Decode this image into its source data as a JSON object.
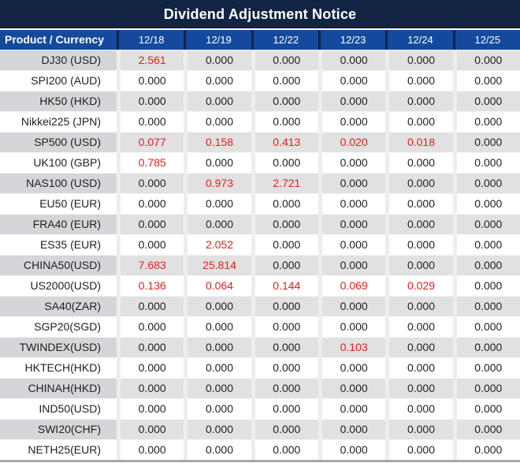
{
  "title": "Dividend Adjustment Notice",
  "colors": {
    "title_bar_navy": "#122444",
    "header_blue": "#15499e",
    "stripe_label_gray": "#d5d6d9",
    "stripe_cell_gray": "#e1e1e1",
    "gridline_gray": "#ededed",
    "highlight_red": "#e02222",
    "text_black": "#1f1f1f"
  },
  "table": {
    "header": [
      "Product / Currency",
      "12/18",
      "12/19",
      "12/22",
      "12/23",
      "12/24",
      "12/25"
    ],
    "rows": [
      {
        "label": "DJ30 (USD)",
        "values": [
          "2.561",
          "0.000",
          "0.000",
          "0.000",
          "0.000",
          "0.000"
        ]
      },
      {
        "label": "SPI200 (AUD)",
        "values": [
          "0.000",
          "0.000",
          "0.000",
          "0.000",
          "0.000",
          "0.000"
        ]
      },
      {
        "label": "HK50 (HKD)",
        "values": [
          "0.000",
          "0.000",
          "0.000",
          "0.000",
          "0.000",
          "0.000"
        ]
      },
      {
        "label": "Nikkei225 (JPN)",
        "values": [
          "0.000",
          "0.000",
          "0.000",
          "0.000",
          "0.000",
          "0.000"
        ]
      },
      {
        "label": "SP500 (USD)",
        "values": [
          "0.077",
          "0.158",
          "0.413",
          "0.020",
          "0.018",
          "0.000"
        ]
      },
      {
        "label": "UK100 (GBP)",
        "values": [
          "0.785",
          "0.000",
          "0.000",
          "0.000",
          "0.000",
          "0.000"
        ]
      },
      {
        "label": "NAS100 (USD)",
        "values": [
          "0.000",
          "0.973",
          "2.721",
          "0.000",
          "0.000",
          "0.000"
        ]
      },
      {
        "label": "EU50 (EUR)",
        "values": [
          "0.000",
          "0.000",
          "0.000",
          "0.000",
          "0.000",
          "0.000"
        ]
      },
      {
        "label": "FRA40 (EUR)",
        "values": [
          "0.000",
          "0.000",
          "0.000",
          "0.000",
          "0.000",
          "0.000"
        ]
      },
      {
        "label": "ES35 (EUR)",
        "values": [
          "0.000",
          "2.052",
          "0.000",
          "0.000",
          "0.000",
          "0.000"
        ]
      },
      {
        "label": "CHINA50(USD)",
        "values": [
          "7.683",
          "25.814",
          "0.000",
          "0.000",
          "0.000",
          "0.000"
        ]
      },
      {
        "label": "US2000(USD)",
        "values": [
          "0.136",
          "0.064",
          "0.144",
          "0.069",
          "0.029",
          "0.000"
        ]
      },
      {
        "label": "SA40(ZAR)",
        "values": [
          "0.000",
          "0.000",
          "0.000",
          "0.000",
          "0.000",
          "0.000"
        ]
      },
      {
        "label": "SGP20(SGD)",
        "values": [
          "0.000",
          "0.000",
          "0.000",
          "0.000",
          "0.000",
          "0.000"
        ]
      },
      {
        "label": "TWINDEX(USD)",
        "values": [
          "0.000",
          "0.000",
          "0.000",
          "0.103",
          "0.000",
          "0.000"
        ]
      },
      {
        "label": "HKTECH(HKD)",
        "values": [
          "0.000",
          "0.000",
          "0.000",
          "0.000",
          "0.000",
          "0.000"
        ]
      },
      {
        "label": "CHINAH(HKD)",
        "values": [
          "0.000",
          "0.000",
          "0.000",
          "0.000",
          "0.000",
          "0.000"
        ]
      },
      {
        "label": "IND50(USD)",
        "values": [
          "0.000",
          "0.000",
          "0.000",
          "0.000",
          "0.000",
          "0.000"
        ]
      },
      {
        "label": "SWI20(CHF)",
        "values": [
          "0.000",
          "0.000",
          "0.000",
          "0.000",
          "0.000",
          "0.000"
        ]
      },
      {
        "label": "NETH25(EUR)",
        "values": [
          "0.000",
          "0.000",
          "0.000",
          "0.000",
          "0.000",
          "0.000"
        ]
      }
    ]
  }
}
